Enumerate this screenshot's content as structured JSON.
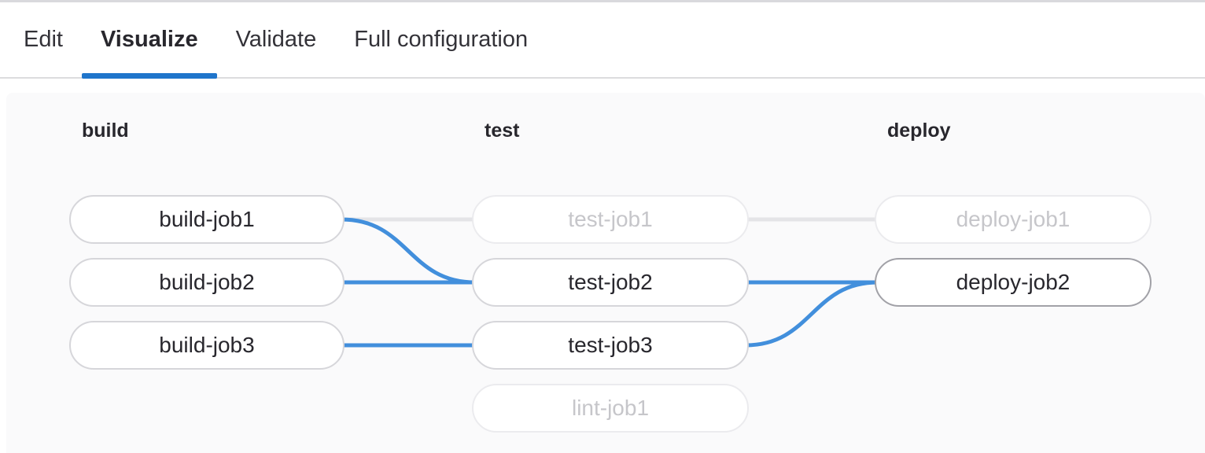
{
  "tabs": [
    {
      "label": "Edit",
      "active": false
    },
    {
      "label": "Visualize",
      "active": true
    },
    {
      "label": "Validate",
      "active": false
    },
    {
      "label": "Full configuration",
      "active": false
    }
  ],
  "pipeline": {
    "stages": [
      {
        "name": "build",
        "jobs": [
          {
            "name": "build-job1",
            "state": "default"
          },
          {
            "name": "build-job2",
            "state": "default"
          },
          {
            "name": "build-job3",
            "state": "default"
          }
        ]
      },
      {
        "name": "test",
        "jobs": [
          {
            "name": "test-job1",
            "state": "faded"
          },
          {
            "name": "test-job2",
            "state": "default"
          },
          {
            "name": "test-job3",
            "state": "default"
          },
          {
            "name": "lint-job1",
            "state": "faded"
          }
        ]
      },
      {
        "name": "deploy",
        "jobs": [
          {
            "name": "deploy-job1",
            "state": "faded"
          },
          {
            "name": "deploy-job2",
            "state": "highlighted"
          }
        ]
      }
    ],
    "links": [
      {
        "from": "build-job1",
        "to": "test-job1",
        "state": "dimmed"
      },
      {
        "from": "test-job1",
        "to": "deploy-job1",
        "state": "dimmed"
      },
      {
        "from": "build-job1",
        "to": "test-job2",
        "state": "highlighted"
      },
      {
        "from": "build-job2",
        "to": "test-job2",
        "state": "highlighted"
      },
      {
        "from": "build-job3",
        "to": "test-job3",
        "state": "highlighted"
      },
      {
        "from": "test-job2",
        "to": "deploy-job2",
        "state": "highlighted"
      },
      {
        "from": "test-job3",
        "to": "deploy-job2",
        "state": "highlighted"
      }
    ]
  },
  "colors": {
    "accent": "#1f75cb",
    "link_active": "#428fdc",
    "link_inactive": "#e4e4e7",
    "canvas_bg": "#fafafb"
  }
}
